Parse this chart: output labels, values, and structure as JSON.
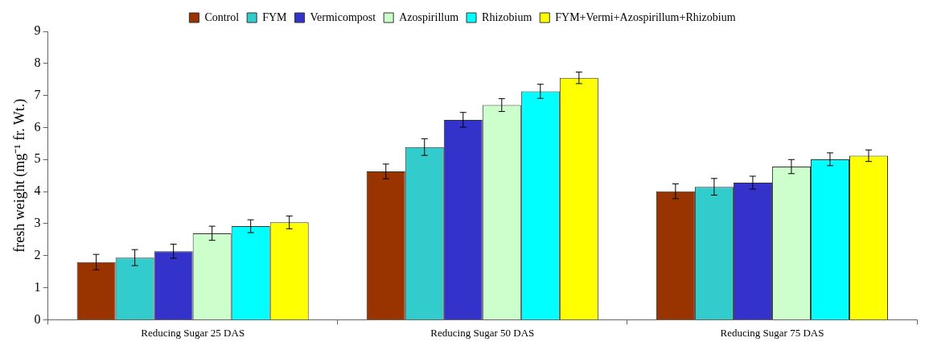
{
  "chart_data": {
    "type": "bar",
    "ylabel": "fresh weight (mg⁻¹ fr. Wt.)",
    "categories": [
      "Reducing Sugar 25 DAS",
      "Reducing Sugar 50 DAS",
      "Reducing Sugar 75 DAS"
    ],
    "series": [
      {
        "name": "Control",
        "color": "#993300",
        "values": [
          1.8,
          4.63,
          4.01
        ],
        "errors": [
          0.24,
          0.23,
          0.23
        ]
      },
      {
        "name": "FYM",
        "color": "#33cccc",
        "values": [
          1.94,
          5.39,
          4.15
        ],
        "errors": [
          0.25,
          0.26,
          0.26
        ]
      },
      {
        "name": "Vermicompost",
        "color": "#3333cc",
        "values": [
          2.14,
          6.24,
          4.28
        ],
        "errors": [
          0.22,
          0.23,
          0.2
        ]
      },
      {
        "name": "Azospirillum",
        "color": "#ccffcc",
        "values": [
          2.7,
          6.7,
          4.78
        ],
        "errors": [
          0.22,
          0.2,
          0.22
        ]
      },
      {
        "name": "Rhizobium",
        "color": "#00ffff",
        "values": [
          2.92,
          7.13,
          5.01
        ],
        "errors": [
          0.2,
          0.22,
          0.2
        ]
      },
      {
        "name": "FYM+Vermi+Azospirillum+Rhizobium",
        "color": "#ffff00",
        "values": [
          3.04,
          7.55,
          5.12
        ],
        "errors": [
          0.2,
          0.18,
          0.18
        ]
      }
    ],
    "ylim": [
      0,
      9
    ],
    "yticks": [
      0,
      1,
      2,
      3,
      4,
      5,
      6,
      7,
      8,
      9
    ],
    "grid": false,
    "legend": "top"
  }
}
